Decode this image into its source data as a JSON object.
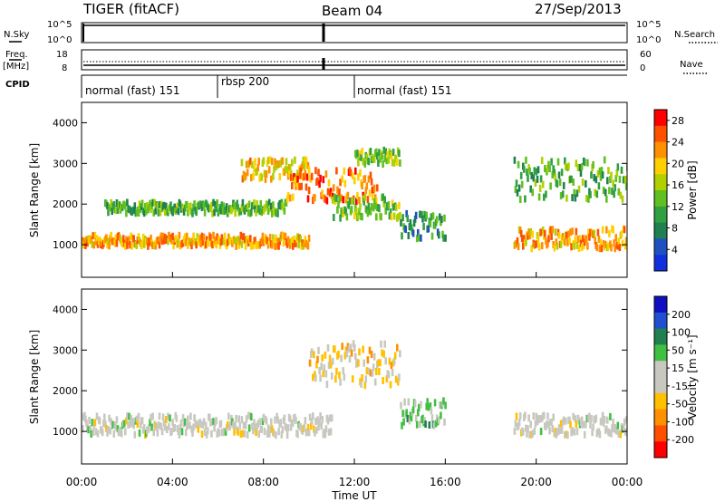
{
  "header": {
    "radar": "TIGER (fitACF)",
    "beam": "Beam 04",
    "date": "27/Sep/2013"
  },
  "strips": {
    "nsky": {
      "left_label": "N.Sky",
      "ticks_left": [
        "10^5",
        "10^0"
      ],
      "ticks_right": [
        "10^5",
        "10^0"
      ],
      "right_label": "N.Search"
    },
    "freq": {
      "left_label_1": "Freq.",
      "left_label_2": "[MHz]",
      "ticks_left": [
        "18",
        "8"
      ],
      "ticks_right": [
        "60",
        "0"
      ],
      "right_label": "Nave"
    },
    "cpid": {
      "left_label": "CPID",
      "segments": [
        {
          "label": "normal (fast) 151",
          "start_h": 0
        },
        {
          "label": "rbsp 200",
          "start_h": 6
        },
        {
          "label": "normal (fast) 151",
          "start_h": 12
        }
      ]
    }
  },
  "chart_data": [
    {
      "type": "heatmap",
      "title": "",
      "xlabel": "",
      "ylabel": "Slant Range [km]",
      "xlim": [
        0,
        24
      ],
      "ylim": [
        200,
        4500
      ],
      "y_ticks": [
        "1000",
        "2000",
        "3000",
        "4000"
      ],
      "colorbar": {
        "label": "Power [dB]",
        "ticks": [
          "4",
          "8",
          "12",
          "16",
          "20",
          "24",
          "28"
        ],
        "range": [
          0,
          30
        ]
      },
      "features": [
        {
          "t0": 0,
          "t1": 10,
          "r0": 900,
          "r1": 1300,
          "v": 22
        },
        {
          "t0": 1,
          "t1": 9,
          "r0": 1700,
          "r1": 2100,
          "v": 12
        },
        {
          "t0": 7,
          "t1": 10,
          "r0": 2500,
          "r1": 3200,
          "v": 20
        },
        {
          "t0": 9,
          "t1": 13,
          "r0": 1900,
          "r1": 3000,
          "v": 24
        },
        {
          "t0": 11,
          "t1": 14,
          "r0": 1500,
          "r1": 2300,
          "v": 14
        },
        {
          "t0": 14,
          "t1": 16,
          "r0": 1000,
          "r1": 1900,
          "v": 10
        },
        {
          "t0": 12,
          "t1": 14,
          "r0": 2900,
          "r1": 3400,
          "v": 14
        },
        {
          "t0": 19,
          "t1": 24,
          "r0": 800,
          "r1": 1500,
          "v": 22
        },
        {
          "t0": 19,
          "t1": 24,
          "r0": 1900,
          "r1": 3300,
          "v": 12
        }
      ]
    },
    {
      "type": "heatmap",
      "title": "",
      "xlabel": "Time UT",
      "ylabel": "Slant Range [km]",
      "xlim": [
        0,
        24
      ],
      "ylim": [
        200,
        4500
      ],
      "x_ticks": [
        "00:00",
        "04:00",
        "08:00",
        "12:00",
        "16:00",
        "20:00",
        "00:00"
      ],
      "y_ticks": [
        "1000",
        "2000",
        "3000",
        "4000"
      ],
      "colorbar": {
        "label": "Velocity [m s⁻¹]",
        "ticks": [
          "200",
          "100",
          "50",
          "15",
          "-15",
          "-50",
          "-100",
          "-200"
        ],
        "range": [
          -250,
          250
        ]
      },
      "features": [
        {
          "t0": 0,
          "t1": 11,
          "r0": 800,
          "r1": 1500,
          "v": 0
        },
        {
          "t0": 10,
          "t1": 14,
          "r0": 1900,
          "r1": 3400,
          "v": -60
        },
        {
          "t0": 14,
          "t1": 16,
          "r0": 1000,
          "r1": 1900,
          "v": 60
        },
        {
          "t0": 19,
          "t1": 24,
          "r0": 800,
          "r1": 1500,
          "v": 0
        }
      ]
    }
  ]
}
